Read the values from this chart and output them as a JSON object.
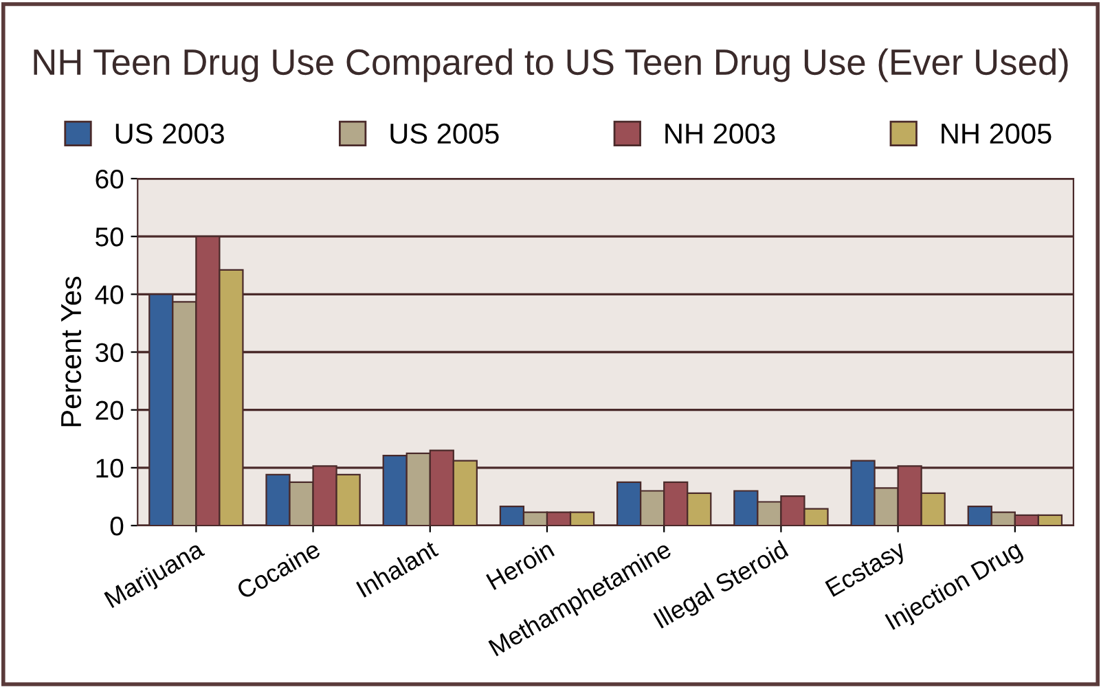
{
  "chart_data": {
    "type": "bar",
    "title": "NH Teen Drug Use Compared to US Teen Drug Use (Ever Used)",
    "ylabel": "Percent Yes",
    "categories": [
      "Marijuana",
      "Cocaine",
      "Inhalant",
      "Heroin",
      "Methamphetamine",
      "Illegal Steroid",
      "Ecstasy",
      "Injection Drug"
    ],
    "series": [
      {
        "name": "US 2003",
        "color": "#35619a",
        "values": [
          40,
          8.8,
          12.1,
          3.3,
          7.5,
          6,
          11.2,
          3.3
        ]
      },
      {
        "name": "US 2005",
        "color": "#b3a88a",
        "values": [
          38.7,
          7.5,
          12.5,
          2.3,
          6,
          4.1,
          6.5,
          2.3
        ]
      },
      {
        "name": "NH 2003",
        "color": "#9b4f55",
        "values": [
          50,
          10.3,
          13,
          2.3,
          7.5,
          5.1,
          10.3,
          1.8
        ]
      },
      {
        "name": "NH 2005",
        "color": "#bfab60",
        "values": [
          44.2,
          8.8,
          11.2,
          2.3,
          5.6,
          2.9,
          5.6,
          1.8
        ]
      }
    ],
    "ylim": [
      0,
      60
    ],
    "yticks": [
      0,
      10,
      20,
      30,
      40,
      50,
      60
    ],
    "grid": "y",
    "legend": "top"
  }
}
